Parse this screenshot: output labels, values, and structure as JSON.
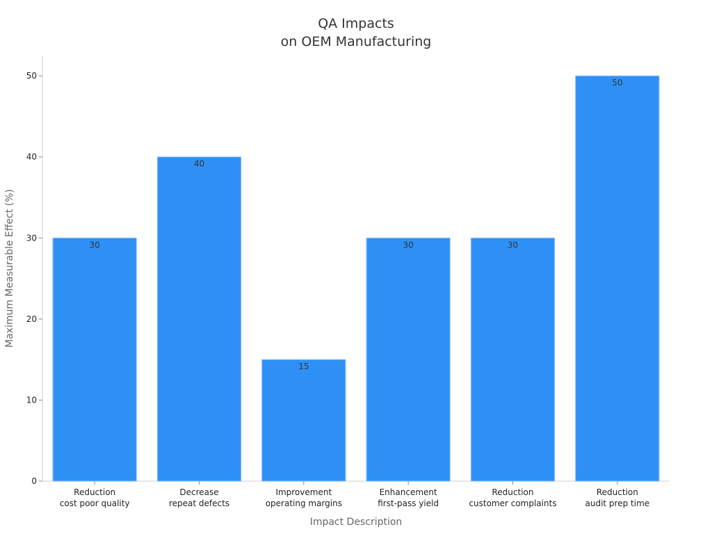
{
  "chart_data": {
    "type": "bar",
    "title": [
      "QA Impacts",
      "on OEM Manufacturing"
    ],
    "xlabel": "Impact Description",
    "ylabel": "Maximum Measurable Effect (%)",
    "categories": [
      [
        "Reduction",
        "cost poor quality"
      ],
      [
        "Decrease",
        "repeat defects"
      ],
      [
        "Improvement",
        "operating margins"
      ],
      [
        "Enhancement",
        "first-pass yield"
      ],
      [
        "Reduction",
        "customer complaints"
      ],
      [
        "Reduction",
        "audit prep time"
      ]
    ],
    "values": [
      30,
      40,
      15,
      30,
      30,
      50
    ],
    "ylim": [
      0,
      52.5
    ],
    "yticks": [
      0,
      10,
      20,
      30,
      40,
      50
    ],
    "grid": false,
    "data_labels": true,
    "bar_color": "#2e90f6",
    "bar_edge_color": "#8fc1f5",
    "axis_color": "#cccccc"
  }
}
